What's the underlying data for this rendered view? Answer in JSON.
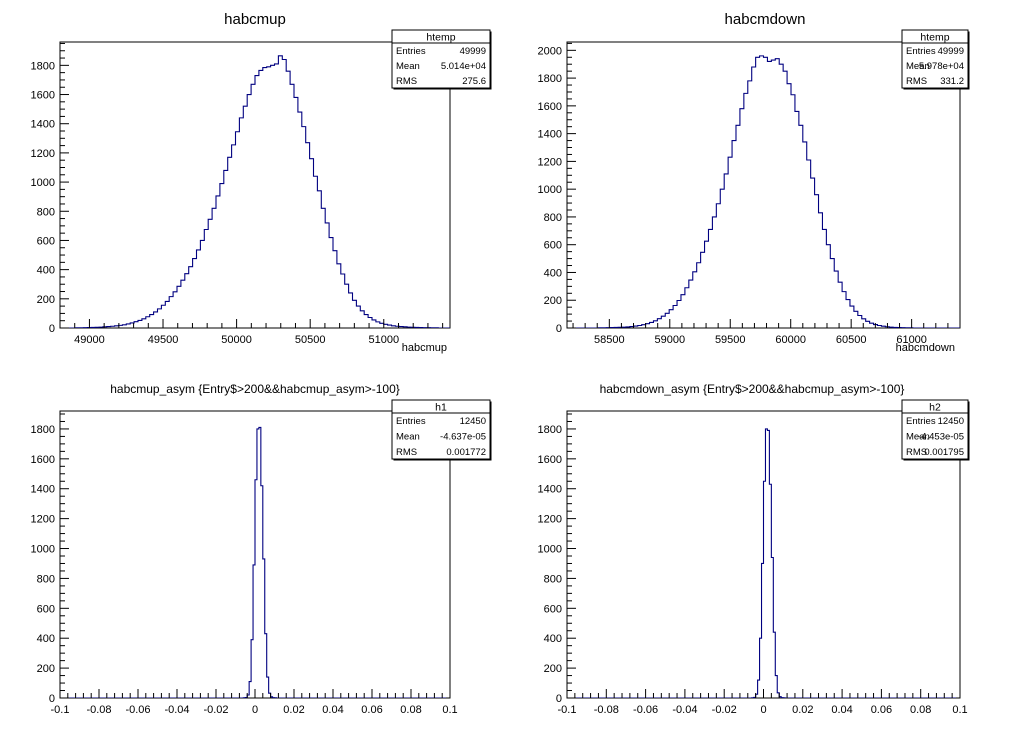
{
  "colors": {
    "histogram_line": "#000080",
    "frame": "#000000",
    "background": "#ffffff"
  },
  "chart_data": [
    {
      "type": "histogram",
      "title": "habcmup",
      "xlabel": "habcmup",
      "ylabel": "",
      "xlim": [
        48800,
        51450
      ],
      "ylim": [
        0,
        1960
      ],
      "x_ticks": [
        49000,
        49500,
        50000,
        50500,
        51000
      ],
      "x_tick_labels": [
        "49000",
        "49500",
        "50000",
        "50500",
        "51000"
      ],
      "y_ticks": [
        0,
        200,
        400,
        600,
        800,
        1000,
        1200,
        1400,
        1600,
        1800
      ],
      "y_tick_labels": [
        "0",
        "200",
        "400",
        "600",
        "800",
        "1000",
        "1200",
        "1400",
        "1600",
        "1800"
      ],
      "grid": false,
      "stats_box": {
        "name": "htemp",
        "rows": [
          {
            "label": "Entries",
            "value": "49999"
          },
          {
            "label": "Mean",
            "value": "5.014e+04"
          },
          {
            "label": "RMS",
            "value": "275.6"
          }
        ]
      },
      "bins": {
        "start": 48800,
        "width": 26.5,
        "values": [
          0,
          0,
          0,
          0,
          1,
          1,
          2,
          3,
          4,
          5,
          6,
          8,
          10,
          12,
          15,
          18,
          22,
          28,
          35,
          43,
          52,
          63,
          77,
          92,
          110,
          131,
          156,
          182,
          215,
          248,
          286,
          328,
          372,
          420,
          476,
          535,
          600,
          675,
          745,
          820,
          905,
          990,
          1080,
          1170,
          1255,
          1345,
          1440,
          1520,
          1600,
          1670,
          1730,
          1765,
          1785,
          1790,
          1800,
          1810,
          1865,
          1840,
          1760,
          1670,
          1580,
          1480,
          1380,
          1270,
          1160,
          1040,
          940,
          820,
          720,
          620,
          530,
          440,
          370,
          300,
          240,
          190,
          150,
          118,
          92,
          72,
          55,
          42,
          32,
          25,
          20,
          15,
          12,
          10,
          8,
          6,
          5,
          4,
          3,
          2,
          2,
          1,
          1,
          0,
          0,
          0
        ]
      }
    },
    {
      "type": "histogram",
      "title": "habcmdown",
      "xlabel": "habcmdown",
      "ylabel": "",
      "xlim": [
        58150,
        61400
      ],
      "ylim": [
        0,
        2060
      ],
      "x_ticks": [
        58500,
        59000,
        59500,
        60000,
        60500,
        61000
      ],
      "x_tick_labels": [
        "58500",
        "59000",
        "59500",
        "60000",
        "60500",
        "61000"
      ],
      "y_ticks": [
        0,
        200,
        400,
        600,
        800,
        1000,
        1200,
        1400,
        1600,
        1800,
        2000
      ],
      "y_tick_labels": [
        "0",
        "200",
        "400",
        "600",
        "800",
        "1000",
        "1200",
        "1400",
        "1600",
        "1800",
        "2000"
      ],
      "grid": false,
      "stats_box": {
        "name": "htemp",
        "rows": [
          {
            "label": "Entries",
            "value": "49999"
          },
          {
            "label": "Mean",
            "value": "5.978e+04"
          },
          {
            "label": "RMS",
            "value": "331.2"
          }
        ]
      },
      "bins": {
        "start": 58150,
        "width": 32.5,
        "values": [
          0,
          0,
          0,
          0,
          0,
          0,
          0,
          0,
          1,
          1,
          2,
          3,
          4,
          5,
          6,
          8,
          10,
          14,
          18,
          24,
          31,
          40,
          52,
          67,
          85,
          106,
          132,
          162,
          198,
          240,
          290,
          345,
          405,
          470,
          545,
          625,
          710,
          800,
          895,
          1000,
          1110,
          1230,
          1350,
          1460,
          1580,
          1690,
          1780,
          1880,
          1950,
          1960,
          1950,
          1920,
          1930,
          1940,
          1900,
          1850,
          1760,
          1680,
          1560,
          1460,
          1340,
          1210,
          1080,
          960,
          830,
          710,
          600,
          500,
          410,
          330,
          262,
          205,
          158,
          120,
          90,
          66,
          48,
          35,
          25,
          18,
          13,
          9,
          6,
          4,
          3,
          2,
          1,
          1,
          0,
          0,
          0,
          0,
          0,
          0,
          0,
          0,
          0,
          0,
          0,
          0
        ]
      }
    },
    {
      "type": "histogram",
      "title": "habcmup_asym {Entry$>200&&habcmup_asym>-100}",
      "xlabel": "",
      "ylabel": "",
      "xlim": [
        -0.1,
        0.1
      ],
      "ylim": [
        0,
        1920
      ],
      "x_ticks": [
        -0.1,
        -0.08,
        -0.06,
        -0.04,
        -0.02,
        0,
        0.02,
        0.04,
        0.06,
        0.08,
        0.1
      ],
      "x_tick_labels": [
        "-0.1",
        "-0.08",
        "-0.06",
        "-0.04",
        "-0.02",
        "0",
        "0.02",
        "0.04",
        "0.06",
        "0.08",
        "0.1"
      ],
      "y_ticks": [
        0,
        200,
        400,
        600,
        800,
        1000,
        1200,
        1400,
        1600,
        1800
      ],
      "y_tick_labels": [
        "0",
        "200",
        "400",
        "600",
        "800",
        "1000",
        "1200",
        "1400",
        "1600",
        "1800"
      ],
      "grid": false,
      "stats_box": {
        "name": "h1",
        "rows": [
          {
            "label": "Entries",
            "value": "12450"
          },
          {
            "label": "Mean",
            "value": "-4.637e-05"
          },
          {
            "label": "RMS",
            "value": "0.001772"
          }
        ]
      },
      "bins": {
        "start": -0.1,
        "width": 0.001,
        "values": [
          0,
          0,
          0,
          0,
          0,
          0,
          0,
          0,
          0,
          0,
          0,
          0,
          0,
          0,
          0,
          0,
          0,
          0,
          0,
          0,
          0,
          0,
          0,
          0,
          0,
          0,
          0,
          0,
          0,
          0,
          0,
          0,
          0,
          0,
          0,
          0,
          0,
          0,
          0,
          0,
          0,
          0,
          0,
          0,
          0,
          0,
          0,
          0,
          0,
          0,
          0,
          0,
          0,
          0,
          0,
          0,
          0,
          0,
          0,
          0,
          0,
          0,
          0,
          0,
          0,
          0,
          0,
          0,
          0,
          0,
          0,
          0,
          0,
          0,
          0,
          0,
          0,
          0,
          0,
          0,
          0,
          0,
          0,
          0,
          0,
          0,
          0,
          0,
          0,
          0,
          0,
          0,
          0,
          0,
          1,
          3,
          20,
          110,
          390,
          890,
          1460,
          1800,
          1810,
          1420,
          930,
          430,
          140,
          32,
          8,
          2,
          1,
          0,
          0,
          0,
          0,
          0,
          0,
          0,
          0,
          0,
          0,
          0,
          0,
          0,
          0,
          0,
          0,
          0,
          0,
          0,
          0,
          0,
          0,
          0,
          0,
          0,
          0,
          0,
          0,
          0,
          0,
          0,
          0,
          0,
          0,
          0,
          0,
          0,
          0,
          0,
          0,
          0,
          0,
          0,
          0,
          0,
          0,
          0,
          0,
          0,
          0,
          0,
          0,
          0,
          0,
          0,
          0,
          0,
          0,
          0,
          0,
          0,
          0,
          0,
          0,
          0,
          0,
          0,
          0,
          0,
          0,
          0,
          0,
          0,
          0,
          0,
          0,
          0,
          0,
          0,
          0,
          0,
          0,
          0,
          0,
          0,
          0,
          0
        ]
      }
    },
    {
      "type": "histogram",
      "title": "habcmdown_asym {Entry$>200&&habcmup_asym>-100}",
      "xlabel": "",
      "ylabel": "",
      "xlim": [
        -0.1,
        0.1
      ],
      "ylim": [
        0,
        1920
      ],
      "x_ticks": [
        -0.1,
        -0.08,
        -0.06,
        -0.04,
        -0.02,
        0,
        0.02,
        0.04,
        0.06,
        0.08,
        0.1
      ],
      "x_tick_labels": [
        "-0.1",
        "-0.08",
        "-0.06",
        "-0.04",
        "-0.02",
        "0",
        "0.02",
        "0.04",
        "0.06",
        "0.08",
        "0.1"
      ],
      "y_ticks": [
        0,
        200,
        400,
        600,
        800,
        1000,
        1200,
        1400,
        1600,
        1800
      ],
      "y_tick_labels": [
        "0",
        "200",
        "400",
        "600",
        "800",
        "1000",
        "1200",
        "1400",
        "1600",
        "1800"
      ],
      "grid": false,
      "stats_box": {
        "name": "h2",
        "rows": [
          {
            "label": "Entries",
            "value": "12450"
          },
          {
            "label": "Mean",
            "value": "-4.453e-05"
          },
          {
            "label": "RMS",
            "value": "0.001795"
          }
        ]
      },
      "bins": {
        "start": -0.1,
        "width": 0.001,
        "values": [
          0,
          0,
          0,
          0,
          0,
          0,
          0,
          0,
          0,
          0,
          0,
          0,
          0,
          0,
          0,
          0,
          0,
          0,
          0,
          0,
          0,
          0,
          0,
          0,
          0,
          0,
          0,
          0,
          0,
          0,
          0,
          0,
          0,
          0,
          0,
          0,
          0,
          0,
          0,
          0,
          0,
          0,
          0,
          0,
          0,
          0,
          0,
          0,
          0,
          0,
          0,
          0,
          0,
          0,
          0,
          0,
          0,
          0,
          0,
          0,
          0,
          0,
          0,
          0,
          0,
          0,
          0,
          0,
          0,
          0,
          0,
          0,
          0,
          0,
          0,
          0,
          0,
          0,
          0,
          0,
          0,
          0,
          0,
          0,
          0,
          0,
          0,
          0,
          0,
          0,
          0,
          0,
          0,
          0,
          1,
          4,
          25,
          120,
          400,
          900,
          1450,
          1800,
          1790,
          1430,
          940,
          440,
          150,
          35,
          9,
          2,
          1,
          0,
          0,
          0,
          0,
          0,
          0,
          0,
          0,
          0,
          0,
          0,
          0,
          0,
          0,
          0,
          0,
          0,
          0,
          0,
          0,
          0,
          0,
          0,
          0,
          0,
          0,
          0,
          0,
          0,
          0,
          0,
          0,
          0,
          0,
          0,
          0,
          0,
          0,
          0,
          0,
          0,
          0,
          0,
          0,
          0,
          0,
          0,
          0,
          0,
          0,
          0,
          0,
          0,
          0,
          0,
          0,
          0,
          0,
          0,
          0,
          0,
          0,
          0,
          0,
          0,
          0,
          0,
          0,
          0,
          0,
          0,
          0,
          0,
          0,
          0,
          0,
          0,
          0,
          0,
          0,
          0,
          0,
          0,
          0,
          0,
          0,
          0
        ]
      }
    }
  ]
}
